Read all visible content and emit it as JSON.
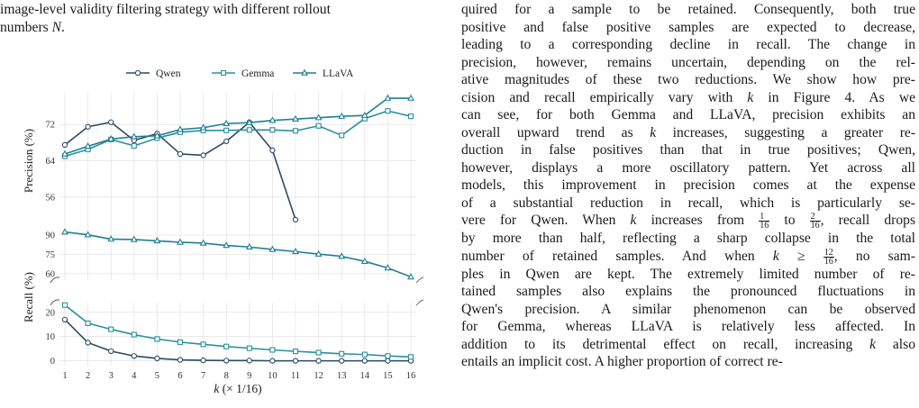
{
  "left_text": {
    "line1": "image-level validity filtering strategy with different rollout",
    "line2_prefix": "numbers ",
    "line2_var": "N",
    "line2_suffix": "."
  },
  "right_text": {
    "lines": [
      "quired for a sample to be retained. Consequently, both true",
      "positive and false positive samples are expected to decrease,",
      "leading to a corresponding decline in recall. The change in",
      "precision, however, remains uncertain, depending on the rel-",
      "ative magnitudes of these two reductions. We show how pre-",
      "cision and recall empirically vary with k in Figure 4. As we",
      "can see, for both Gemma and LLaVA, precision exhibits an",
      "overall upward trend as k increases, suggesting a greater re-",
      "duction in false positives than that in true positives; Qwen,",
      "however, displays a more oscillatory pattern. Yet across all",
      "models, this improvement in precision comes at the expense",
      "of a substantial reduction in recall, which is particularly se-",
      "vere for Qwen. When k increases from 1/16 to 2/16, recall drops",
      "by more than half, reflecting a sharp collapse in the total",
      "number of retained samples. And when k ≥ 12/16, no sam-",
      "ples in Qwen are kept. The extremely limited number of re-",
      "tained samples also explains the pronounced fluctuations in",
      "Qwen's precision. A similar phenomenon can be observed",
      "for Gemma, whereas LLaVA is relatively less affected. In",
      "addition to its detrimental effect on recall, increasing k also",
      "entails an implicit cost. A higher proportion of correct re-"
    ]
  },
  "chart_data": {
    "type": "line",
    "x": [
      1,
      2,
      3,
      4,
      5,
      6,
      7,
      8,
      9,
      10,
      11,
      12,
      13,
      14,
      15,
      16
    ],
    "xlabel": "k (× 1/16)",
    "legend": [
      "Qwen",
      "Gemma",
      "LLaVA"
    ],
    "legend_position": "top",
    "colors": {
      "Qwen": "#2b4a66",
      "Gemma": "#2a8fa0",
      "LLaVA": "#1f7f95"
    },
    "markers": {
      "Qwen": "circle",
      "Gemma": "square",
      "LLaVA": "triangle"
    },
    "precision": {
      "ylabel": "Precision (%)",
      "yticks": [
        56,
        64,
        72
      ],
      "ylim": [
        49,
        79
      ],
      "series": [
        {
          "name": "Qwen",
          "values": [
            67.5,
            71.5,
            72.5,
            68.5,
            70.0,
            65.5,
            65.2,
            68.3,
            72.5,
            66.3,
            51.0,
            null,
            null,
            null,
            null,
            null
          ]
        },
        {
          "name": "Gemma",
          "values": [
            65.0,
            66.5,
            68.7,
            67.3,
            69.0,
            70.3,
            70.7,
            70.7,
            70.8,
            70.8,
            70.6,
            71.7,
            69.6,
            73.3,
            75.0,
            73.8
          ]
        },
        {
          "name": "LLaVA",
          "values": [
            65.5,
            67.2,
            68.8,
            69.3,
            69.5,
            70.9,
            71.3,
            72.2,
            72.4,
            72.9,
            73.2,
            73.5,
            73.8,
            74.0,
            77.8,
            77.8
          ]
        }
      ]
    },
    "recall": {
      "ylabel": "Recall (%)",
      "yticks_upper": [
        60,
        75,
        90
      ],
      "yticks_lower": [
        0,
        10,
        20
      ],
      "ylim_upper": [
        55,
        95
      ],
      "ylim_lower": [
        -2,
        24
      ],
      "series": [
        {
          "name": "Qwen",
          "values": [
            17.0,
            7.5,
            4.0,
            2.0,
            1.0,
            0.4,
            0.2,
            0.1,
            0.1,
            0,
            0,
            0,
            0,
            0,
            0,
            0
          ]
        },
        {
          "name": "Gemma",
          "values": [
            23.0,
            15.5,
            13.0,
            10.8,
            9.0,
            7.7,
            6.8,
            5.9,
            5.2,
            4.5,
            3.9,
            3.4,
            2.9,
            2.6,
            2.0,
            1.6
          ]
        },
        {
          "name": "LLaVA",
          "values": [
            92.5,
            90.3,
            86.9,
            86.6,
            85.6,
            84.5,
            83.8,
            82.0,
            80.8,
            78.9,
            77.2,
            75.3,
            73.5,
            69.6,
            64.5,
            57.5
          ]
        }
      ]
    }
  }
}
